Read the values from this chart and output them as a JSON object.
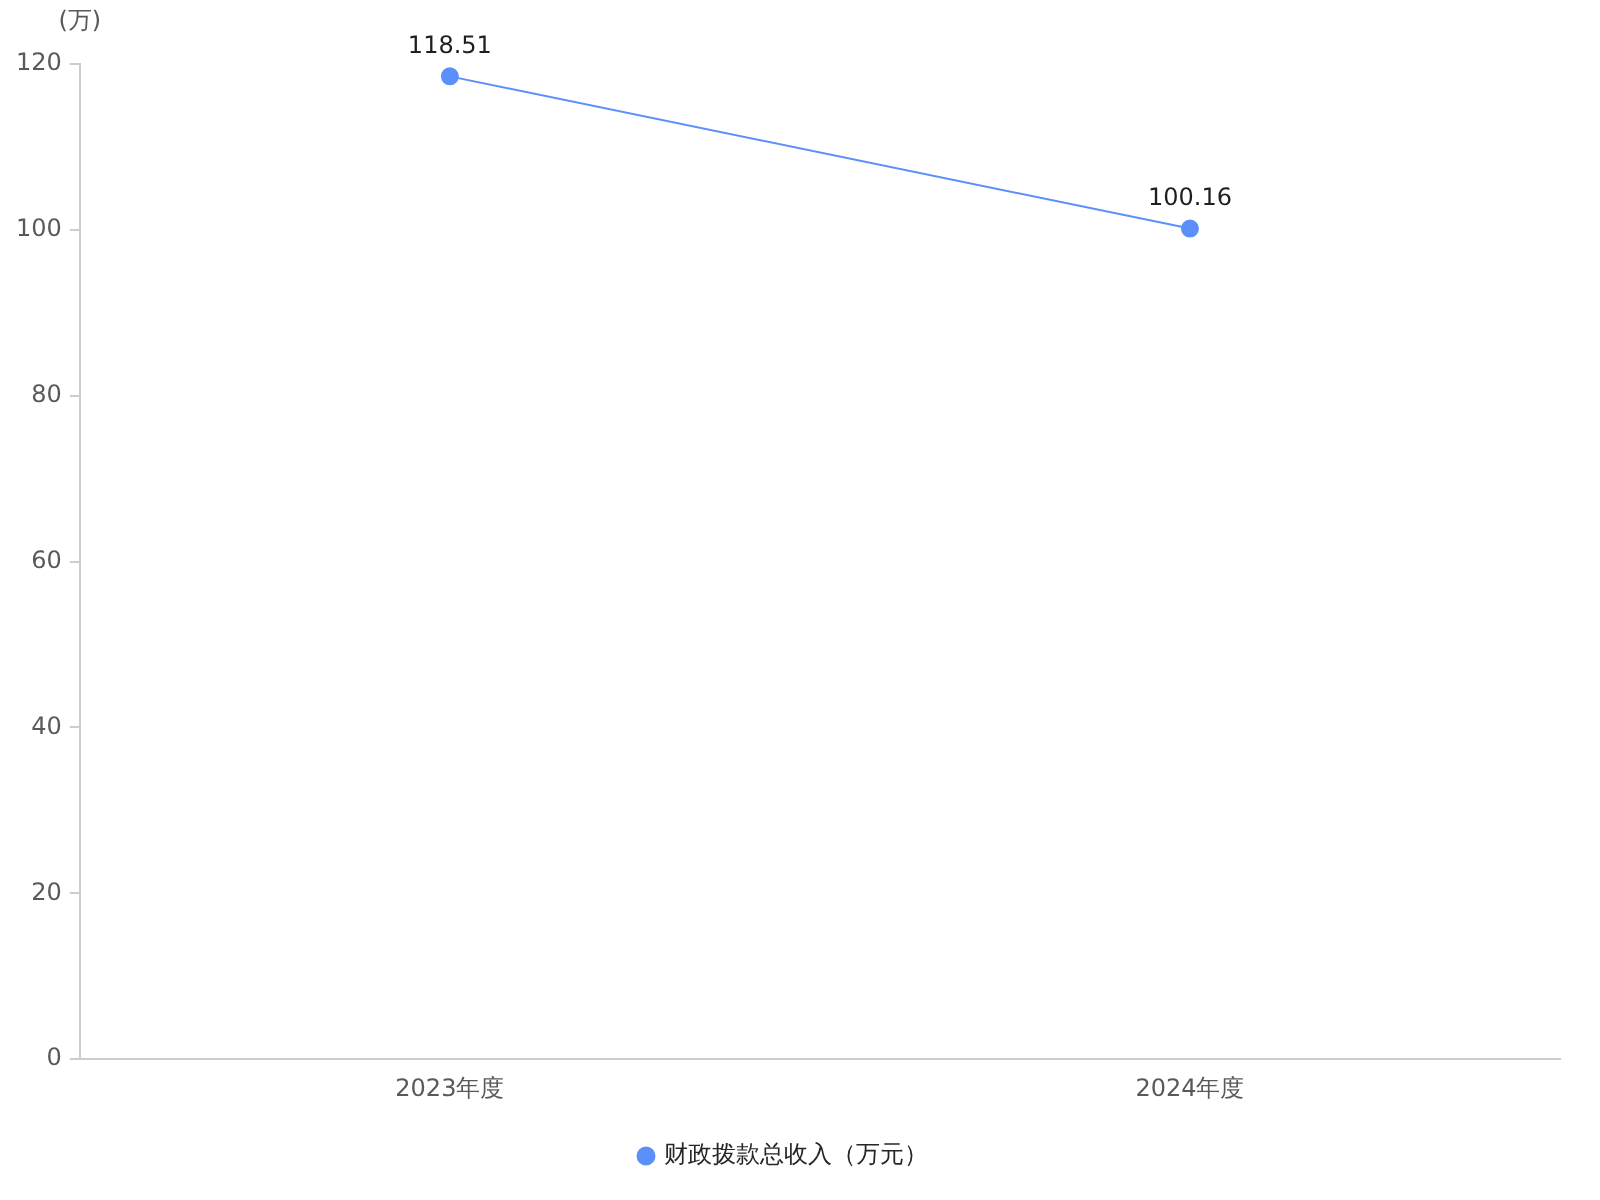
{
  "chart_data": {
    "type": "line",
    "ylabel": "(万)",
    "categories": [
      "2023年度",
      "2024年度"
    ],
    "series": [
      {
        "name": "财政拨款总收入（万元）",
        "color": "#5b8ff9",
        "values": [
          118.51,
          100.16
        ]
      }
    ],
    "ylim": [
      0,
      120
    ],
    "yticks": [
      0,
      20,
      40,
      60,
      80,
      100,
      120
    ],
    "grid": false,
    "legend": "bottom",
    "marker": "circle",
    "line_style": "solid",
    "data_labels": true
  }
}
